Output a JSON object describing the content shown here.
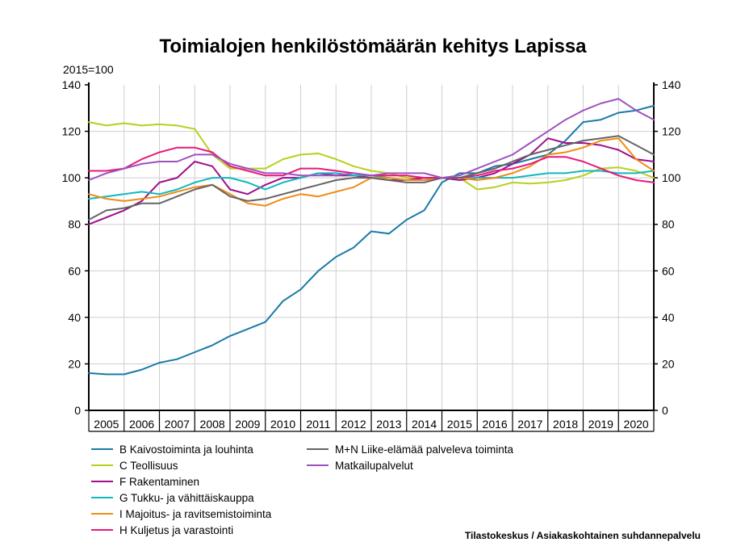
{
  "chart_data": {
    "type": "line",
    "title": "Toimialojen henkilöstömäärän kehitys Lapissa",
    "ylabel": "2015=100",
    "source": "Tilastokeskus / Asiakaskohtainen suhdannepalvelu",
    "ylim": [
      0,
      140
    ],
    "yticks": [
      0,
      20,
      40,
      60,
      80,
      100,
      120,
      140
    ],
    "xlim": [
      2005,
      2021
    ],
    "year_labels": [
      "2005",
      "2006",
      "2007",
      "2008",
      "2009",
      "2010",
      "2011",
      "2012",
      "2013",
      "2014",
      "2015",
      "2016",
      "2017",
      "2018",
      "2019",
      "2020"
    ],
    "grid": true,
    "legend_position": "bottom",
    "x": [
      2005.0,
      2005.5,
      2006.0,
      2006.5,
      2007.0,
      2007.5,
      2008.0,
      2008.5,
      2009.0,
      2009.5,
      2010.0,
      2010.5,
      2011.0,
      2011.5,
      2012.0,
      2012.5,
      2013.0,
      2013.5,
      2014.0,
      2014.5,
      2015.0,
      2015.5,
      2016.0,
      2016.5,
      2017.0,
      2017.5,
      2018.0,
      2018.5,
      2019.0,
      2019.5,
      2020.0,
      2020.5,
      2021.0
    ],
    "series": [
      {
        "name": "B Kaivostoiminta ja louhinta",
        "color": "#1a7aa8",
        "values": [
          16,
          15.5,
          15.5,
          17.5,
          20.5,
          22,
          25,
          28,
          32,
          35,
          38,
          47,
          52,
          60,
          66,
          70,
          77,
          76,
          82,
          86,
          98,
          102,
          102,
          105,
          106,
          108,
          110,
          116,
          124,
          125,
          128,
          129,
          131
        ]
      },
      {
        "name": "C Teollisuus",
        "color": "#b9cf1e",
        "values": [
          124,
          122.5,
          123.5,
          122.5,
          123,
          122.5,
          121,
          110,
          104,
          104,
          104,
          108,
          110,
          110.5,
          108,
          105,
          103,
          102,
          100,
          100,
          100,
          100,
          95,
          96,
          98,
          97.5,
          98,
          99,
          101,
          104,
          104.5,
          103,
          100
        ]
      },
      {
        "name": "F Rakentaminen",
        "color": "#9e0e8e",
        "values": [
          80,
          83,
          86,
          90,
          98,
          100,
          107,
          105,
          95,
          93,
          97,
          100,
          100,
          102,
          101,
          101,
          100,
          99,
          99,
          100,
          100,
          99,
          100,
          102,
          106,
          110,
          117,
          115,
          115,
          114,
          112,
          108,
          107
        ]
      },
      {
        "name": "G Tukku- ja vähittäiskauppa",
        "color": "#10b8c0",
        "values": [
          91,
          92,
          93,
          94,
          93,
          95,
          98,
          100,
          100,
          98,
          95,
          98,
          100,
          102,
          102,
          101,
          101,
          100,
          99,
          99,
          100,
          100,
          100,
          100,
          100,
          101,
          102,
          102,
          103,
          103,
          102,
          102,
          103
        ]
      },
      {
        "name": "I Majoitus- ja ravitsemistoiminta",
        "color": "#f08c14",
        "values": [
          93,
          91,
          90,
          91,
          92,
          94,
          96,
          97,
          93,
          89,
          88,
          91,
          93,
          92,
          94,
          96,
          100,
          100,
          99,
          99,
          100,
          100,
          99,
          100,
          102,
          105,
          110,
          111,
          113,
          116,
          117,
          108,
          103
        ]
      },
      {
        "name": "H Kuljetus ja varastointi",
        "color": "#e8187c",
        "values": [
          103,
          103,
          104,
          108,
          111,
          113,
          113,
          111,
          105,
          103,
          101,
          101,
          104,
          104,
          103,
          102,
          101,
          101,
          101,
          100,
          100,
          100,
          101,
          103,
          104,
          106,
          109,
          109,
          107,
          104,
          101,
          99,
          98
        ]
      },
      {
        "name": "M+N Liike-elämää palveleva toiminta",
        "color": "#646464",
        "values": [
          82,
          86,
          87,
          89,
          89,
          92,
          95,
          97,
          92,
          90,
          91,
          93,
          95,
          97,
          99,
          100,
          100,
          99,
          98,
          98,
          100,
          100,
          102,
          104,
          107,
          110,
          112,
          114,
          116,
          117,
          118,
          114,
          110
        ]
      },
      {
        "name": "Matkailupalvelut",
        "color": "#a050c0",
        "values": [
          99,
          102,
          104,
          106,
          107,
          107,
          110,
          110,
          106,
          104,
          102,
          102,
          101,
          101,
          101,
          102,
          101,
          102,
          102,
          102,
          100,
          101,
          104,
          107,
          110,
          115,
          120,
          125,
          129,
          132,
          134,
          129,
          125
        ]
      }
    ]
  }
}
